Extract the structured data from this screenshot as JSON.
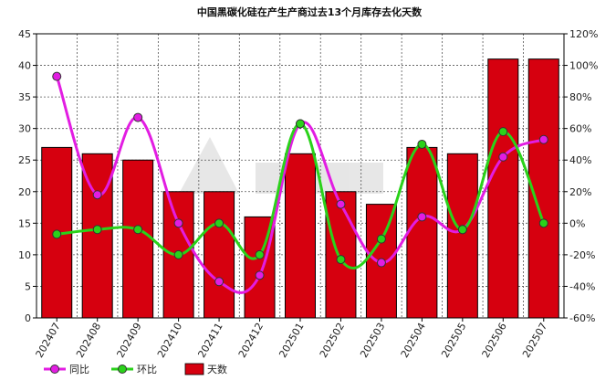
{
  "chart_data": {
    "type": "bar",
    "title": "中国黑碳化硅在产生产商过去13个月库存去化天数",
    "categories": [
      "202407",
      "202408",
      "202409",
      "202410",
      "202411",
      "202412",
      "202501",
      "202502",
      "202503",
      "202504",
      "202505",
      "202506",
      "202507"
    ],
    "series": [
      {
        "name": "天数",
        "kind": "bar",
        "axis": "left",
        "color": "#d6000f",
        "values": [
          27,
          26,
          25,
          20,
          20,
          16,
          26,
          20,
          18,
          27,
          26,
          41,
          41
        ]
      },
      {
        "name": "同比",
        "kind": "line",
        "axis": "right",
        "color": "#e21de2",
        "values": [
          93,
          18,
          67,
          0,
          -37,
          -33,
          63,
          12,
          -25,
          4,
          -4,
          42,
          53
        ]
      },
      {
        "name": "环比",
        "kind": "line",
        "axis": "right",
        "color": "#2ad21a",
        "values": [
          -7,
          -4,
          -4,
          -20,
          0,
          -20,
          63,
          -23,
          -10,
          50,
          -4,
          58,
          0
        ]
      }
    ],
    "y_left": {
      "min": 0,
      "max": 45,
      "step": 5,
      "ticks": [
        "0",
        "5",
        "10",
        "15",
        "20",
        "25",
        "30",
        "35",
        "40",
        "45"
      ]
    },
    "y_right": {
      "min": -60,
      "max": 120,
      "step": 20,
      "ticks": [
        "-60%",
        "-40%",
        "-20%",
        "0%",
        "20%",
        "40%",
        "60%",
        "80%",
        "100%",
        "120%"
      ]
    },
    "grid": true,
    "legend_position": "bottom-left"
  }
}
